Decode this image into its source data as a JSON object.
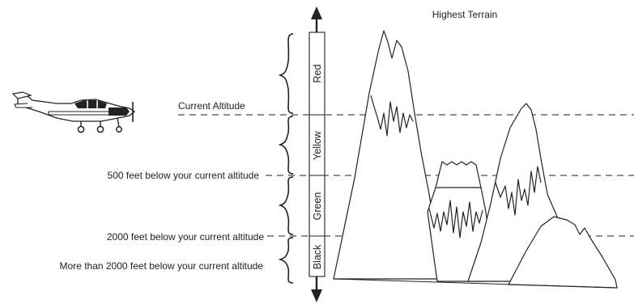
{
  "title": "Highest Terrain",
  "reference_lines": {
    "current": "Current Altitude",
    "minus_500": "500 feet below your current altitude",
    "minus_2000": "2000 feet below your current altitude",
    "below_2000": "More than 2000 feet below your current altitude"
  },
  "bands": [
    {
      "label": "Red",
      "color": "#222222"
    },
    {
      "label": "Yellow",
      "color": "#222222"
    },
    {
      "label": "Green",
      "color": "#222222"
    },
    {
      "label": "Black",
      "color": "#222222"
    }
  ],
  "icons": {
    "aircraft": "airplane-icon",
    "axis_up": "arrow-up-icon",
    "axis_down": "arrow-down-icon"
  },
  "colors": {
    "ink": "#222222",
    "background": "#ffffff"
  }
}
